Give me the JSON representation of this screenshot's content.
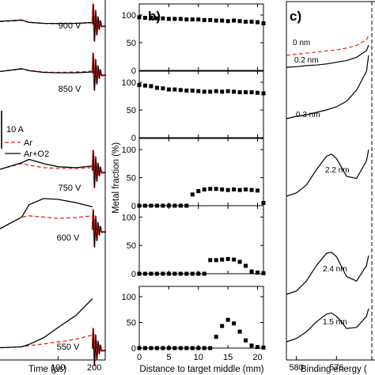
{
  "chart_data": [
    {
      "type": "line",
      "panel": "a",
      "xlabel": "Time (µs)",
      "xticks": [
        100,
        200
      ],
      "xlim": [
        -60,
        230
      ],
      "scale_bar_label": "10 A",
      "legend": {
        "position": "middle-left",
        "entries": [
          "Ar",
          "Ar+O2"
        ]
      },
      "series_styles": {
        "Ar": {
          "color": "#e8231c",
          "dash": "dashed"
        },
        "Ar+O2": {
          "color": "#000000",
          "dash": "solid"
        }
      },
      "traces": [
        {
          "voltage": "900 V",
          "Ar": {
            "x": [
              -60,
              0,
              20,
              60,
              100,
              150,
              195
            ],
            "y": [
              0.5,
              0.8,
              0.3,
              0.05,
              0.0,
              0.1,
              0.2
            ]
          },
          "Ar+O2": {
            "x": [
              -60,
              0,
              20,
              60,
              100,
              150,
              195
            ],
            "y": [
              0.6,
              0.9,
              0.35,
              0.1,
              0.05,
              0.1,
              0.3
            ]
          }
        },
        {
          "voltage": "850 V",
          "Ar": {
            "x": [
              -60,
              0,
              20,
              60,
              100,
              150,
              195
            ],
            "y": [
              0.3,
              0.9,
              0.6,
              0.2,
              0.1,
              0.2,
              0.4
            ]
          },
          "Ar+O2": {
            "x": [
              -60,
              0,
              20,
              60,
              100,
              150,
              195
            ],
            "y": [
              0.3,
              1.0,
              0.5,
              0.1,
              0.0,
              0.0,
              0.2
            ]
          }
        },
        {
          "voltage": "750 V",
          "Ar": {
            "x": [
              -60,
              0,
              20,
              60,
              100,
              150,
              195
            ],
            "y": [
              0.2,
              1.6,
              1.2,
              0.6,
              0.4,
              0.4,
              0.6
            ]
          },
          "Ar+O2": {
            "x": [
              -60,
              0,
              20,
              60,
              100,
              150,
              195
            ],
            "y": [
              0.2,
              1.8,
              2.6,
              1.6,
              0.8,
              0.6,
              1.0
            ]
          }
        },
        {
          "voltage": "600 V",
          "Ar": {
            "x": [
              -60,
              0,
              20,
              60,
              100,
              150,
              195
            ],
            "y": [
              0.2,
              3.0,
              3.3,
              3.0,
              2.7,
              2.9,
              3.3
            ]
          },
          "Ar+O2": {
            "x": [
              -60,
              0,
              20,
              60,
              100,
              150,
              195
            ],
            "y": [
              0.2,
              3.0,
              6.0,
              7.5,
              7.3,
              6.5,
              5.5
            ]
          }
        },
        {
          "voltage": "550 V",
          "Ar": {
            "x": [
              -60,
              0,
              20,
              60,
              100,
              150,
              195
            ],
            "y": [
              0.1,
              0.3,
              0.6,
              1.0,
              1.5,
              2.2,
              3.2
            ]
          },
          "Ar+O2": {
            "x": [
              -60,
              0,
              20,
              60,
              100,
              150,
              195
            ],
            "y": [
              0.1,
              0.3,
              0.9,
              2.5,
              5.0,
              8.0,
              12.0
            ]
          }
        }
      ]
    },
    {
      "type": "scatter",
      "panel": "b)",
      "ylabel": "Metal fraction (%)",
      "xlabel": "Distance to target middle (mm)",
      "xlim": [
        0,
        21
      ],
      "ylim": [
        0,
        120
      ],
      "xticks": [
        0,
        5,
        10,
        15,
        20
      ],
      "yticks": [
        0,
        50,
        100
      ],
      "panels": [
        {
          "x": [
            0,
            1,
            2,
            3,
            4,
            5,
            6,
            7,
            8,
            9,
            10,
            11,
            12,
            13,
            14,
            15,
            16,
            17,
            18,
            19,
            20,
            21
          ],
          "y": [
            96,
            95,
            95,
            94,
            94,
            93,
            93,
            93,
            92,
            92,
            92,
            91,
            91,
            90,
            90,
            89,
            90,
            89,
            88,
            88,
            87,
            85
          ]
        },
        {
          "x": [
            0,
            1,
            2,
            3,
            4,
            5,
            6,
            7,
            8,
            9,
            10,
            11,
            12,
            13,
            14,
            15,
            16,
            17,
            18,
            19,
            20,
            21
          ],
          "y": [
            95,
            94,
            93,
            90,
            89,
            87,
            87,
            86,
            85,
            85,
            84,
            83,
            83,
            84,
            83,
            84,
            83,
            82,
            82,
            82,
            81,
            80
          ]
        },
        {
          "x": [
            0,
            1,
            2,
            3,
            4,
            5,
            6,
            7,
            8,
            9,
            10,
            11,
            12,
            13,
            14,
            15,
            16,
            17,
            18,
            19,
            20,
            21
          ],
          "y": [
            0,
            0,
            0,
            0,
            0,
            0,
            0,
            0,
            0,
            20,
            26,
            29,
            30,
            30,
            29,
            28,
            29,
            28,
            29,
            28,
            27,
            5
          ]
        },
        {
          "x": [
            0,
            1,
            2,
            3,
            4,
            5,
            6,
            7,
            8,
            9,
            10,
            11,
            12,
            13,
            14,
            15,
            16,
            17,
            18,
            19,
            20,
            21
          ],
          "y": [
            0,
            0,
            0,
            0,
            0,
            0,
            0,
            0,
            0,
            0,
            0,
            0,
            24,
            24,
            25,
            26,
            25,
            21,
            14,
            4,
            2,
            1
          ]
        },
        {
          "x": [
            0,
            1,
            2,
            3,
            4,
            5,
            6,
            7,
            8,
            9,
            10,
            11,
            12,
            13,
            14,
            15,
            16,
            17,
            18,
            19,
            20,
            21
          ],
          "y": [
            0,
            0,
            0,
            0,
            0,
            0,
            0,
            0,
            0,
            0,
            0,
            0,
            0,
            22,
            43,
            55,
            48,
            32,
            15,
            5,
            2,
            1
          ]
        }
      ]
    },
    {
      "type": "line",
      "panel": "c)",
      "xlabel": "Binding energy (",
      "xticks": [
        580,
        576
      ],
      "xlim": [
        581,
        572
      ],
      "spectra": [
        {
          "label": "0 nm",
          "color": "#e8231c",
          "dash": "dashed",
          "x": [
            581,
            580,
            579,
            578,
            577,
            576,
            575,
            574,
            573,
            572.8
          ],
          "y": [
            0.0,
            0.2,
            0.4,
            0.6,
            0.8,
            1.0,
            1.3,
            1.8,
            2.8,
            3.6
          ]
        },
        {
          "label": "0.2 nm",
          "color": "#000000",
          "dash": "solid",
          "x": [
            581,
            580,
            579,
            578,
            577,
            576,
            575,
            574,
            573,
            572.8
          ],
          "y": [
            0.0,
            0.1,
            0.3,
            0.4,
            0.6,
            0.9,
            1.2,
            1.8,
            3.0,
            4.0
          ]
        },
        {
          "label": "0.3 nm",
          "color": "#000000",
          "dash": "solid",
          "x": [
            581,
            580,
            579,
            578,
            577,
            576,
            575,
            574,
            573,
            572.8
          ],
          "y": [
            0.0,
            0.3,
            0.5,
            0.8,
            1.1,
            1.5,
            2.2,
            3.6,
            6.0,
            8.0
          ]
        },
        {
          "label": "2.2 nm",
          "color": "#000000",
          "dash": "solid",
          "x": [
            581,
            580,
            579,
            578,
            577,
            576.5,
            576,
            575.5,
            575,
            574,
            573,
            572.8
          ],
          "y": [
            0.0,
            0.3,
            1.0,
            2.4,
            3.6,
            3.8,
            3.4,
            2.6,
            1.8,
            1.6,
            3.2,
            4.2
          ]
        },
        {
          "label": "2.4 nm",
          "color": "#000000",
          "dash": "solid",
          "x": [
            581,
            580,
            579,
            578,
            577,
            576.5,
            576,
            575.5,
            575,
            574,
            573,
            572.8
          ],
          "y": [
            0.0,
            0.3,
            1.2,
            2.6,
            3.7,
            3.8,
            3.4,
            2.5,
            1.6,
            1.2,
            2.6,
            3.5
          ]
        },
        {
          "label": "1.5 nm",
          "color": "#000000",
          "dash": "solid",
          "x": [
            581,
            580,
            579,
            578,
            577,
            576.5,
            576,
            575.5,
            575,
            574,
            573,
            572.8
          ],
          "y": [
            0.0,
            0.3,
            0.9,
            1.8,
            2.5,
            2.6,
            2.3,
            1.8,
            1.2,
            1.3,
            2.3,
            3.0
          ]
        }
      ]
    }
  ]
}
